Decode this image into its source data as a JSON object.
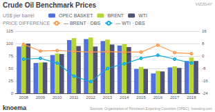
{
  "chart_data": {
    "type": "bar",
    "title": "Crude Oil Benchmark Prices",
    "subtitle": "US$ per barrel",
    "annotations": [
      "PRICE DIFFERENCE",
      "VIZ2DAY",
      "knoema",
      "Sources: Organization of Petroleum Exporting Countries (OPEC), Investing.com"
    ],
    "categories": [
      "2008",
      "2009",
      "2010",
      "2011",
      "2012",
      "2013",
      "2014",
      "2015",
      "2016",
      "2017",
      "2018"
    ],
    "series": [
      {
        "name": "OPEC BASKET",
        "type": "bar",
        "values": [
          94,
          61,
          77,
          107,
          109,
          105,
          96,
          49,
          40,
          52,
          65
        ]
      },
      {
        "name": "BRENT",
        "type": "bar",
        "values": [
          97,
          62,
          80,
          111,
          112,
          108,
          99,
          53,
          45,
          54,
          72
        ]
      },
      {
        "name": "WTI",
        "type": "bar",
        "values": [
          100,
          62,
          79,
          95,
          94,
          98,
          93,
          49,
          44,
          51,
          65
        ]
      },
      {
        "name": "— BRENT · DBS",
        "type": "line",
        "axis": "y2",
        "values": [
          7.5,
          3.2,
          3.5,
          3.0,
          2.5,
          2.8,
          2.5,
          2.5,
          7.0,
          2.2,
          1.5
        ]
      },
      {
        "name": "— WTI · DBS",
        "type": "line",
        "axis": "y2",
        "values": [
          -2.0,
          -1.5,
          -4.5,
          -13.0,
          -16.5,
          -8.0,
          -5.0,
          -1.5,
          0.5,
          -2.0,
          -4.5
        ]
      }
    ],
    "ylim": [
      0,
      125
    ],
    "yticks": [
      0,
      25,
      50,
      75,
      100,
      125
    ],
    "y2lim": [
      -24,
      16
    ],
    "y2ticks": [
      -24,
      -16,
      -8,
      0,
      8,
      16
    ],
    "grid": true,
    "legend": "top"
  }
}
